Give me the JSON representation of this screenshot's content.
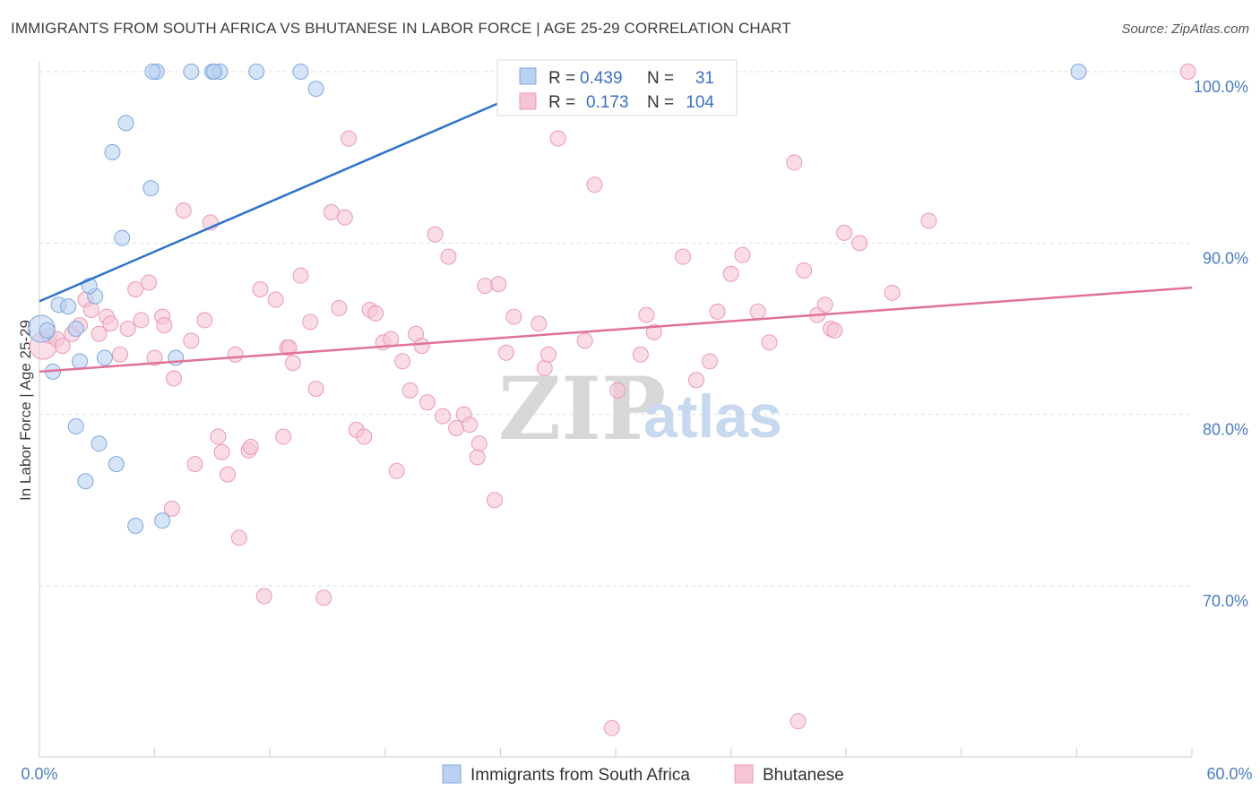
{
  "title": "IMMIGRANTS FROM SOUTH AFRICA VS BHUTANESE IN LABOR FORCE | AGE 25-29 CORRELATION CHART",
  "source": "Source: ZipAtlas.com",
  "watermark": {
    "zip": "ZIP",
    "atlas": "atlas"
  },
  "colors": {
    "blue_fill": "#b9d2f2",
    "blue_stroke": "#7ea7dc",
    "blue_line": "#2e72cc",
    "pink_fill": "#f7c4d6",
    "pink_stroke": "#ea9ab8",
    "pink_line": "#e0719a",
    "grid": "#dddddd",
    "tick_label": "#4a7cc3"
  },
  "legend": {
    "rows": [
      {
        "r_label": "R =",
        "r_value": "0.439",
        "n_label": "N =",
        "n_value": "31"
      },
      {
        "r_label": "R =",
        "r_value": "0.173",
        "n_label": "N =",
        "n_value": "104"
      }
    ]
  },
  "chart_data": {
    "type": "scatter",
    "title": "IMMIGRANTS FROM SOUTH AFRICA VS BHUTANESE IN LABOR FORCE | AGE 25-29 CORRELATION CHART",
    "xlabel": "",
    "ylabel": "In Labor Force | Age 25-29",
    "xlim": [
      0,
      60
    ],
    "ylim": [
      60,
      102
    ],
    "x_tick_labels": [
      "0.0%",
      "60.0%"
    ],
    "y_ticks": [
      70,
      80,
      90,
      100
    ],
    "y_tick_labels": [
      "70.0%",
      "80.0%",
      "90.0%",
      "100.0%"
    ],
    "grid": true,
    "legend_position": "top-center",
    "series": [
      {
        "name": "Immigrants from South Africa",
        "color": "#b9d2f2",
        "R": 0.439,
        "N": 31,
        "trend": {
          "x": [
            0,
            27.5
          ],
          "y": [
            86.6,
            99.9
          ]
        },
        "points": [
          [
            0.1,
            85.0
          ],
          [
            0.4,
            84.9
          ],
          [
            0.7,
            82.5
          ],
          [
            1.0,
            86.4
          ],
          [
            1.5,
            86.3
          ],
          [
            1.9,
            85.0
          ],
          [
            2.9,
            86.9
          ],
          [
            2.6,
            87.5
          ],
          [
            1.9,
            79.3
          ],
          [
            2.1,
            83.1
          ],
          [
            3.1,
            78.3
          ],
          [
            3.4,
            83.3
          ],
          [
            4.0,
            77.1
          ],
          [
            2.4,
            76.1
          ],
          [
            4.5,
            97.0
          ],
          [
            3.8,
            95.3
          ],
          [
            5.8,
            93.2
          ],
          [
            4.3,
            90.3
          ],
          [
            6.1,
            100.0
          ],
          [
            5.9,
            100.0
          ],
          [
            7.9,
            100.0
          ],
          [
            9.0,
            100.0
          ],
          [
            9.4,
            100.0
          ],
          [
            9.1,
            100.0
          ],
          [
            11.3,
            100.0
          ],
          [
            13.6,
            100.0
          ],
          [
            14.4,
            99.0
          ],
          [
            5.0,
            73.5
          ],
          [
            6.4,
            73.8
          ],
          [
            7.1,
            83.3
          ],
          [
            54.1,
            100.0
          ]
        ]
      },
      {
        "name": "Bhutanese",
        "color": "#f7c4d6",
        "R": 0.173,
        "N": 104,
        "trend": {
          "x": [
            0,
            60
          ],
          "y": [
            82.5,
            87.4
          ]
        },
        "points": [
          [
            0.2,
            84.0
          ],
          [
            0.5,
            84.6
          ],
          [
            0.9,
            84.4
          ],
          [
            1.2,
            84.0
          ],
          [
            1.7,
            84.7
          ],
          [
            2.1,
            85.2
          ],
          [
            2.4,
            86.7
          ],
          [
            2.7,
            86.1
          ],
          [
            3.1,
            84.7
          ],
          [
            3.5,
            85.7
          ],
          [
            3.7,
            85.3
          ],
          [
            4.2,
            83.5
          ],
          [
            4.6,
            85.0
          ],
          [
            5.0,
            87.3
          ],
          [
            5.3,
            85.5
          ],
          [
            5.7,
            87.7
          ],
          [
            6.0,
            83.3
          ],
          [
            6.4,
            85.7
          ],
          [
            6.5,
            85.2
          ],
          [
            7.0,
            82.1
          ],
          [
            7.5,
            91.9
          ],
          [
            7.9,
            84.3
          ],
          [
            8.1,
            77.1
          ],
          [
            8.6,
            85.5
          ],
          [
            8.9,
            91.2
          ],
          [
            9.3,
            78.7
          ],
          [
            9.5,
            77.8
          ],
          [
            9.8,
            76.5
          ],
          [
            10.2,
            83.5
          ],
          [
            10.4,
            72.8
          ],
          [
            10.9,
            77.9
          ],
          [
            11.0,
            78.1
          ],
          [
            11.5,
            87.3
          ],
          [
            11.7,
            69.4
          ],
          [
            12.3,
            86.7
          ],
          [
            12.7,
            78.7
          ],
          [
            12.9,
            83.9
          ],
          [
            13.2,
            83.0
          ],
          [
            13.6,
            88.1
          ],
          [
            14.1,
            85.4
          ],
          [
            14.4,
            81.5
          ],
          [
            14.8,
            69.3
          ],
          [
            15.2,
            91.8
          ],
          [
            15.6,
            86.2
          ],
          [
            15.9,
            91.5
          ],
          [
            16.1,
            96.1
          ],
          [
            16.5,
            79.1
          ],
          [
            16.9,
            78.7
          ],
          [
            17.2,
            86.1
          ],
          [
            17.5,
            85.9
          ],
          [
            17.9,
            84.2
          ],
          [
            18.3,
            84.4
          ],
          [
            18.6,
            76.7
          ],
          [
            18.9,
            83.1
          ],
          [
            19.3,
            81.4
          ],
          [
            19.6,
            84.7
          ],
          [
            19.9,
            84.0
          ],
          [
            20.2,
            80.7
          ],
          [
            20.6,
            90.5
          ],
          [
            21.0,
            79.9
          ],
          [
            21.3,
            89.2
          ],
          [
            21.7,
            79.2
          ],
          [
            22.1,
            80.0
          ],
          [
            22.4,
            79.4
          ],
          [
            22.8,
            77.5
          ],
          [
            23.2,
            87.5
          ],
          [
            23.7,
            75.0
          ],
          [
            23.9,
            87.6
          ],
          [
            24.3,
            83.6
          ],
          [
            24.7,
            85.7
          ],
          [
            26.0,
            85.3
          ],
          [
            26.3,
            82.7
          ],
          [
            26.5,
            83.5
          ],
          [
            27.0,
            96.1
          ],
          [
            28.4,
            84.3
          ],
          [
            28.9,
            93.4
          ],
          [
            30.1,
            81.4
          ],
          [
            31.3,
            83.5
          ],
          [
            31.6,
            85.8
          ],
          [
            32.0,
            84.8
          ],
          [
            33.5,
            89.2
          ],
          [
            34.2,
            82.0
          ],
          [
            34.9,
            83.1
          ],
          [
            35.3,
            86.0
          ],
          [
            36.0,
            88.2
          ],
          [
            36.6,
            89.3
          ],
          [
            37.4,
            86.0
          ],
          [
            38.0,
            84.2
          ],
          [
            39.3,
            94.7
          ],
          [
            39.8,
            88.4
          ],
          [
            40.5,
            85.8
          ],
          [
            40.9,
            86.4
          ],
          [
            41.2,
            85.0
          ],
          [
            41.4,
            84.9
          ],
          [
            41.9,
            90.6
          ],
          [
            42.7,
            90.0
          ],
          [
            44.4,
            87.1
          ],
          [
            46.3,
            91.3
          ],
          [
            59.8,
            100.0
          ],
          [
            29.8,
            61.7
          ],
          [
            39.5,
            62.1
          ],
          [
            22.9,
            78.3
          ],
          [
            13.0,
            83.9
          ],
          [
            6.9,
            74.5
          ]
        ]
      }
    ]
  },
  "bottom_legend": {
    "items": [
      {
        "label": "Immigrants from South Africa"
      },
      {
        "label": "Bhutanese"
      }
    ]
  }
}
